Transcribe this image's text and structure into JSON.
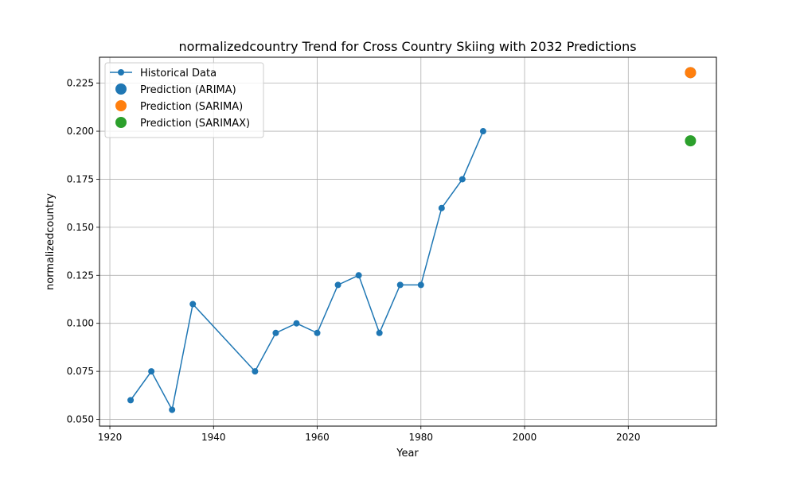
{
  "chart_data": {
    "type": "line",
    "title": "normalizedcountry Trend for Cross Country Skiing with 2032 Predictions",
    "xlabel": "Year",
    "ylabel": "normalizedcountry",
    "xlim": [
      1918,
      2037
    ],
    "ylim": [
      0.0465,
      0.2385
    ],
    "x_ticks": [
      1920,
      1940,
      1960,
      1980,
      2000,
      2020
    ],
    "y_ticks": [
      0.05,
      0.075,
      0.1,
      0.125,
      0.15,
      0.175,
      0.2,
      0.225
    ],
    "y_tick_labels": [
      "0.050",
      "0.075",
      "0.100",
      "0.125",
      "0.150",
      "0.175",
      "0.200",
      "0.225"
    ],
    "grid": true,
    "legend_position": "upper-left",
    "series": [
      {
        "name": "Historical Data",
        "kind": "line-marker",
        "color": "#1f77b4",
        "x": [
          1924,
          1928,
          1932,
          1936,
          1948,
          1952,
          1956,
          1960,
          1964,
          1968,
          1972,
          1976,
          1980,
          1984,
          1988,
          1992
        ],
        "y": [
          0.06,
          0.075,
          0.055,
          0.11,
          0.075,
          0.095,
          0.1,
          0.095,
          0.12,
          0.125,
          0.095,
          0.12,
          0.12,
          0.16,
          0.175,
          0.2
        ]
      },
      {
        "name": "Prediction (ARIMA)",
        "kind": "point",
        "color": "#1f77b4",
        "x": [
          2032
        ],
        "y": [
          0.2305
        ]
      },
      {
        "name": "Prediction (SARIMA)",
        "kind": "point",
        "color": "#ff7f0e",
        "x": [
          2032
        ],
        "y": [
          0.2305
        ]
      },
      {
        "name": "Prediction (SARIMAX)",
        "kind": "point",
        "color": "#2ca02c",
        "x": [
          2032
        ],
        "y": [
          0.195
        ]
      }
    ]
  }
}
